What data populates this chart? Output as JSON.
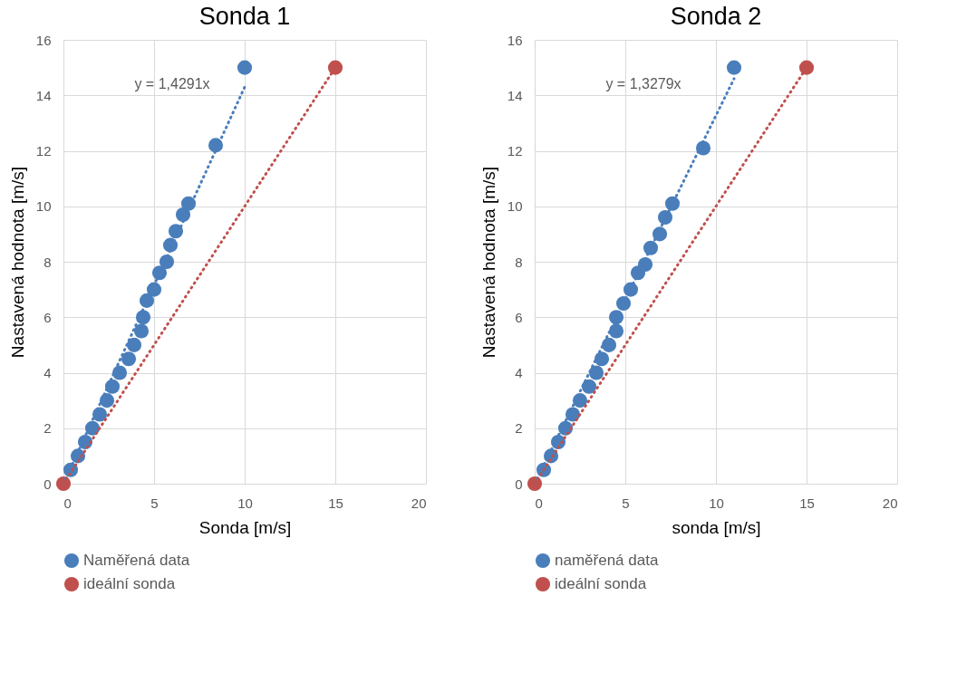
{
  "chart_data": [
    {
      "type": "scatter",
      "title": "Sonda 1",
      "xlabel": "Sonda [m/s]",
      "ylabel": "Nastavená hodnota [m/s]",
      "xlim": [
        0,
        20
      ],
      "xticks": [
        0,
        5,
        10,
        15,
        20
      ],
      "ylim": [
        0,
        16
      ],
      "yticks": [
        0,
        2,
        4,
        6,
        8,
        10,
        12,
        14,
        16
      ],
      "grid": true,
      "legend": "bottom",
      "annotations": [
        "y = 1,4291x"
      ],
      "series": [
        {
          "name": "Naměřená data",
          "color": "#4a7ebb",
          "marker": "circle",
          "x": [
            0.4,
            0.8,
            1.2,
            1.6,
            2.0,
            2.4,
            2.7,
            3.1,
            3.6,
            3.9,
            4.3,
            4.4,
            4.6,
            5.0,
            5.3,
            5.7,
            5.9,
            6.2,
            6.6,
            6.9,
            8.4,
            10.0
          ],
          "values": [
            0.5,
            1.0,
            1.5,
            2.0,
            2.5,
            3.0,
            3.5,
            4.0,
            4.5,
            5.0,
            5.5,
            6.0,
            6.6,
            7.0,
            7.6,
            8.0,
            8.6,
            9.1,
            9.7,
            10.1,
            12.2,
            15.0
          ]
        },
        {
          "name": "ideální sonda",
          "color": "#c0504d",
          "marker": "circle",
          "x": [
            0,
            15
          ],
          "values": [
            0,
            15
          ]
        },
        {
          "type": "line",
          "color": "#4a7ebb",
          "line_style": "dotted",
          "marker": "none",
          "x": [
            0,
            10
          ],
          "values": [
            0,
            14.3
          ]
        },
        {
          "type": "line",
          "color": "#c0504d",
          "line_style": "dotted",
          "marker": "none",
          "x": [
            0,
            15
          ],
          "values": [
            0,
            15
          ]
        }
      ]
    },
    {
      "type": "scatter",
      "title": "Sonda 2",
      "xlabel": "sonda [m/s]",
      "ylabel": "Nastavená hodnota [m/s]",
      "xlim": [
        0,
        20
      ],
      "xticks": [
        0,
        5,
        10,
        15,
        20
      ],
      "ylim": [
        0,
        16
      ],
      "yticks": [
        0,
        2,
        4,
        6,
        8,
        10,
        12,
        14,
        16
      ],
      "grid": true,
      "legend": "bottom",
      "annotations": [
        "y = 1,3279x"
      ],
      "series": [
        {
          "name": "naměřená data",
          "color": "#4a7ebb",
          "marker": "circle",
          "x": [
            0.5,
            0.9,
            1.3,
            1.7,
            2.1,
            2.5,
            3.0,
            3.4,
            3.7,
            4.1,
            4.5,
            4.5,
            4.9,
            5.3,
            5.7,
            6.1,
            6.4,
            6.9,
            7.2,
            7.6,
            9.3,
            11.0
          ],
          "values": [
            0.5,
            1.0,
            1.5,
            2.0,
            2.5,
            3.0,
            3.5,
            4.0,
            4.5,
            5.0,
            5.5,
            6.0,
            6.5,
            7.0,
            7.6,
            7.9,
            8.5,
            9.0,
            9.6,
            10.1,
            12.1,
            15.0
          ]
        },
        {
          "name": "ideální sonda",
          "color": "#c0504d",
          "marker": "circle",
          "x": [
            0,
            15
          ],
          "values": [
            0,
            15
          ]
        },
        {
          "type": "line",
          "color": "#4a7ebb",
          "line_style": "dotted",
          "marker": "none",
          "x": [
            0,
            11
          ],
          "values": [
            0,
            14.6
          ]
        },
        {
          "type": "line",
          "color": "#c0504d",
          "line_style": "dotted",
          "marker": "none",
          "x": [
            0,
            15
          ],
          "values": [
            0,
            15
          ]
        }
      ]
    }
  ]
}
